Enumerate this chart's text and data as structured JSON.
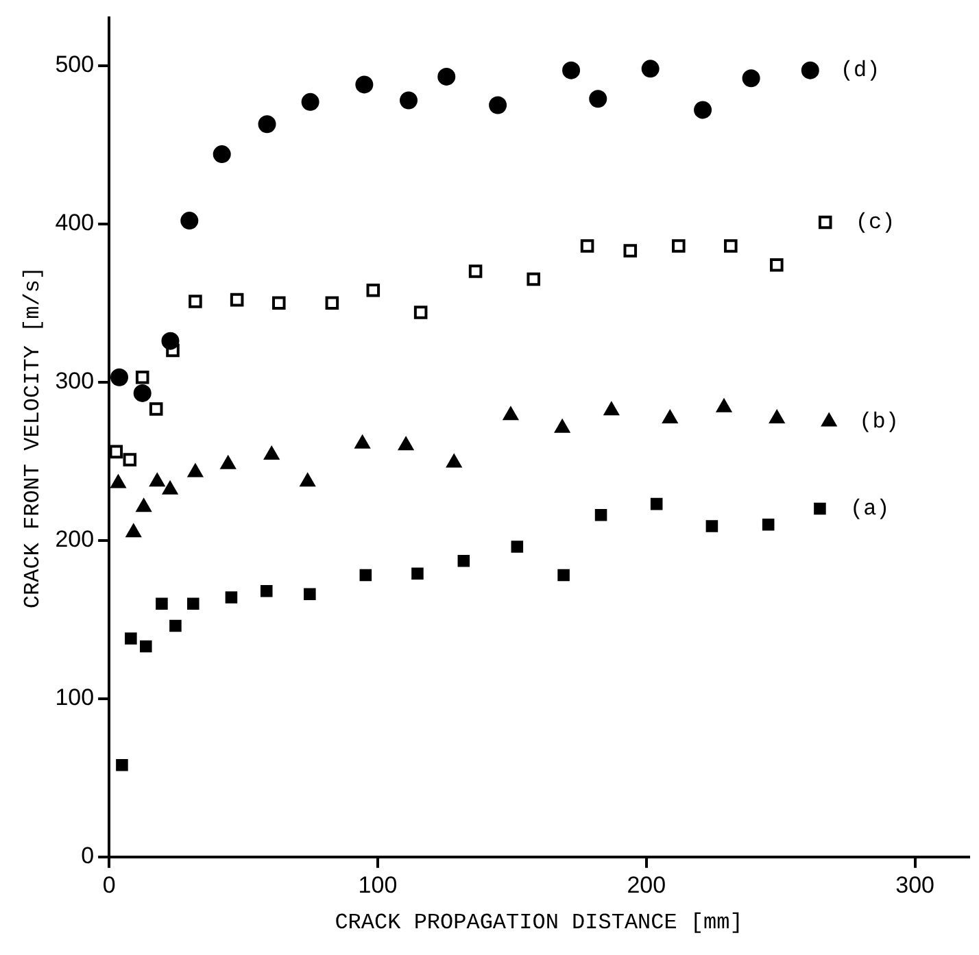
{
  "chart_data": {
    "type": "scatter",
    "xlabel": "CRACK PROPAGATION DISTANCE [mm]",
    "ylabel": "CRACK FRONT VELOCITY [m/s]",
    "xlim": [
      0,
      320
    ],
    "ylim": [
      0,
      530
    ],
    "xticks": [
      0,
      100,
      200,
      300
    ],
    "yticks": [
      0,
      100,
      200,
      300,
      400,
      500
    ],
    "grid": false,
    "legend": false,
    "series": [
      {
        "name": "(d)",
        "color": "#000000",
        "marker": "circle",
        "x": [
          3.8,
          12.4,
          22.8,
          29.9,
          42,
          58.8,
          74.9,
          95,
          111.5,
          125.6,
          144.7,
          172,
          182,
          201.5,
          221,
          239,
          261
        ],
        "values": [
          303,
          293,
          326,
          402,
          444,
          463,
          477,
          488,
          478,
          493,
          475,
          497,
          479,
          498,
          472,
          492,
          497
        ]
      },
      {
        "name": "(c)",
        "color": "#000000",
        "marker": "square",
        "x": [
          2.6,
          7.7,
          12.4,
          17.5,
          23.7,
          32.1,
          47.6,
          63.2,
          83,
          98.3,
          116,
          136.4,
          158,
          178,
          194,
          212,
          231.4,
          248.5,
          266.6
        ],
        "values": [
          256,
          251,
          303,
          283,
          320,
          351,
          352,
          350,
          350,
          358,
          344,
          370,
          365,
          386,
          383,
          386,
          386,
          374,
          401
        ]
      },
      {
        "name": "(b)",
        "color": "#000000",
        "marker": "triangle",
        "x": [
          3.4,
          9.1,
          12.9,
          17.9,
          22.7,
          32.1,
          44.3,
          60.5,
          73.9,
          94.3,
          110.5,
          128.4,
          149.5,
          168.7,
          187,
          208.8,
          228.9,
          248.6,
          268
        ],
        "values": [
          236,
          205,
          221,
          237,
          232,
          243,
          248,
          254,
          237,
          261,
          260,
          249,
          279,
          271,
          282,
          277,
          284,
          277,
          275
        ]
      },
      {
        "name": "(a)",
        "color": "#000000",
        "marker": "square",
        "x": [
          4.8,
          8.1,
          13.7,
          19.6,
          24.7,
          31.3,
          45.5,
          58.6,
          74.7,
          95.5,
          114.8,
          132,
          151.9,
          169.2,
          183.1,
          203.8,
          224.4,
          245.4,
          264.6
        ],
        "values": [
          58,
          138,
          133,
          160,
          146,
          160,
          164,
          168,
          166,
          178,
          179,
          187,
          196,
          178,
          216,
          223,
          209,
          210,
          220
        ]
      }
    ]
  }
}
